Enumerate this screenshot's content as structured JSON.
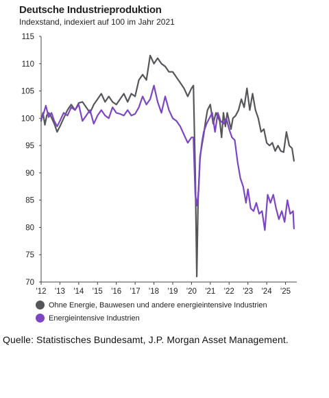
{
  "chart_data": {
    "type": "line",
    "title": "Deutsche Industrieproduktion",
    "subtitle": "Indexstand, indexiert auf 100 im Jahr 2021",
    "xlabel": "",
    "ylabel": "",
    "ylim": [
      70,
      115
    ],
    "xlim": [
      2012.0,
      2025.6
    ],
    "y_ticks": [
      70,
      75,
      80,
      85,
      90,
      95,
      100,
      105,
      110,
      115
    ],
    "y_tick_labels": [
      "70",
      "75",
      "80",
      "85",
      "90",
      "95",
      "100",
      "105",
      "110",
      "115"
    ],
    "x_ticks": [
      2012,
      2013,
      2014,
      2015,
      2016,
      2017,
      2018,
      2019,
      2020,
      2021,
      2022,
      2023,
      2024,
      2025
    ],
    "x_tick_labels": [
      "'12",
      "'13",
      "'14",
      "'15",
      "'16",
      "'17",
      "'18",
      "'19",
      "'20",
      "'21",
      "'22",
      "'23",
      "'24",
      "'25"
    ],
    "grid": false,
    "legend_position": "bottom-left",
    "series": [
      {
        "name": "Ohne Energie, Bauwesen und andere energieintensive Industrien",
        "color": "#555659",
        "x": [
          2012.0,
          2012.1,
          2012.2,
          2012.3,
          2012.4,
          2012.5,
          2012.7,
          2012.85,
          2013.0,
          2013.2,
          2013.4,
          2013.6,
          2013.8,
          2014.0,
          2014.2,
          2014.4,
          2014.6,
          2014.8,
          2015.0,
          2015.2,
          2015.4,
          2015.6,
          2015.8,
          2016.0,
          2016.2,
          2016.4,
          2016.6,
          2016.8,
          2017.0,
          2017.2,
          2017.4,
          2017.6,
          2017.8,
          2018.0,
          2018.2,
          2018.4,
          2018.6,
          2018.8,
          2019.0,
          2019.2,
          2019.4,
          2019.6,
          2019.8,
          2020.0,
          2020.1,
          2020.2,
          2020.28,
          2020.35,
          2020.45,
          2020.55,
          2020.65,
          2020.75,
          2020.85,
          2021.0,
          2021.15,
          2021.3,
          2021.5,
          2021.6,
          2021.7,
          2021.8,
          2021.9,
          2022.0,
          2022.1,
          2022.2,
          2022.35,
          2022.5,
          2022.65,
          2022.8,
          2022.95,
          2023.1,
          2023.25,
          2023.4,
          2023.55,
          2023.7,
          2023.85,
          2024.0,
          2024.15,
          2024.3,
          2024.45,
          2024.6,
          2024.75,
          2024.9,
          2025.05,
          2025.2,
          2025.35,
          2025.45
        ],
        "y": [
          99.5,
          101.0,
          98.8,
          100.5,
          101.0,
          100.5,
          99.0,
          97.5,
          98.5,
          100.0,
          101.5,
          102.5,
          101.5,
          102.8,
          103.0,
          102.0,
          101.0,
          102.5,
          103.5,
          104.5,
          103.0,
          104.0,
          103.0,
          102.5,
          103.5,
          104.5,
          103.0,
          104.5,
          104.0,
          107.0,
          108.0,
          107.0,
          111.5,
          110.0,
          111.0,
          110.0,
          109.5,
          108.5,
          108.5,
          107.5,
          106.5,
          105.5,
          104.0,
          105.5,
          106.0,
          90.0,
          71.0,
          85.0,
          93.0,
          95.0,
          97.0,
          99.5,
          101.5,
          102.5,
          99.0,
          101.0,
          99.5,
          96.5,
          101.0,
          98.5,
          101.0,
          99.5,
          98.0,
          100.0,
          100.5,
          101.5,
          103.5,
          102.0,
          105.5,
          101.5,
          104.5,
          101.5,
          100.0,
          97.5,
          98.0,
          95.5,
          95.0,
          95.5,
          94.0,
          95.0,
          94.0,
          93.8,
          97.5,
          95.0,
          94.5,
          92.2
        ]
      },
      {
        "name": "Energieintensive Industrien",
        "color": "#7b45c4",
        "x": [
          2012.0,
          2012.1,
          2012.25,
          2012.4,
          2012.55,
          2012.7,
          2012.85,
          2013.0,
          2013.2,
          2013.4,
          2013.6,
          2013.8,
          2014.0,
          2014.2,
          2014.4,
          2014.6,
          2014.8,
          2015.0,
          2015.2,
          2015.4,
          2015.6,
          2015.8,
          2016.0,
          2016.2,
          2016.4,
          2016.6,
          2016.8,
          2017.0,
          2017.2,
          2017.4,
          2017.6,
          2017.8,
          2018.0,
          2018.2,
          2018.4,
          2018.6,
          2018.8,
          2019.0,
          2019.2,
          2019.4,
          2019.6,
          2019.8,
          2020.0,
          2020.1,
          2020.2,
          2020.3,
          2020.38,
          2020.45,
          2020.55,
          2020.65,
          2020.8,
          2020.95,
          2021.1,
          2021.25,
          2021.4,
          2021.55,
          2021.7,
          2021.85,
          2022.0,
          2022.15,
          2022.3,
          2022.45,
          2022.6,
          2022.75,
          2022.9,
          2023.0,
          2023.15,
          2023.3,
          2023.45,
          2023.6,
          2023.75,
          2023.9,
          2024.05,
          2024.2,
          2024.35,
          2024.5,
          2024.65,
          2024.8,
          2024.95,
          2025.1,
          2025.25,
          2025.4,
          2025.45
        ],
        "y": [
          99.8,
          100.5,
          102.3,
          100.2,
          101.0,
          99.5,
          98.5,
          99.5,
          101.0,
          100.5,
          102.0,
          101.5,
          102.5,
          99.5,
          100.5,
          101.5,
          99.0,
          100.5,
          101.5,
          100.5,
          100.0,
          102.0,
          101.0,
          100.8,
          100.5,
          101.5,
          100.5,
          100.8,
          102.0,
          104.0,
          102.5,
          103.5,
          106.0,
          103.0,
          101.0,
          104.0,
          101.5,
          100.0,
          99.5,
          98.5,
          97.0,
          95.5,
          96.5,
          96.5,
          86.0,
          84.0,
          87.0,
          92.5,
          95.5,
          97.5,
          99.0,
          100.0,
          101.0,
          97.5,
          101.0,
          99.5,
          99.0,
          100.0,
          98.0,
          96.5,
          96.0,
          92.0,
          89.0,
          87.5,
          84.5,
          87.0,
          83.5,
          83.0,
          84.5,
          82.5,
          83.0,
          79.5,
          86.0,
          84.5,
          86.0,
          83.5,
          81.5,
          83.0,
          81.0,
          85.0,
          82.5,
          83.0,
          79.8
        ]
      }
    ]
  },
  "footer": {
    "source": "Quelle: Statistisches Bundesamt, J.P. Morgan Asset Management."
  }
}
